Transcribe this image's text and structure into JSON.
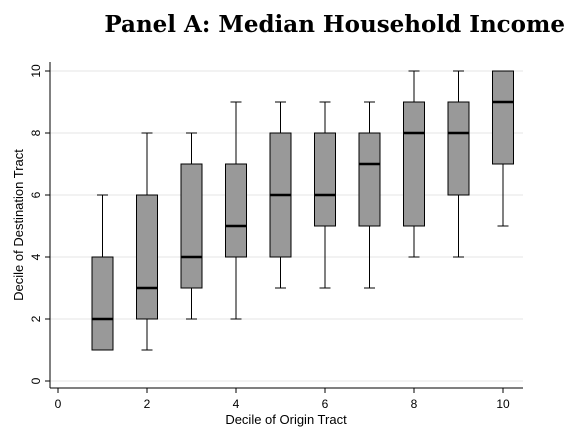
{
  "chart_data": {
    "type": "box",
    "title": "Panel A: Median Household Income",
    "xlabel": "Decile of Origin Tract",
    "ylabel": "Decile of Destination Tract",
    "xlim": [
      0,
      10.4
    ],
    "ylim": [
      0,
      10
    ],
    "xticks": [
      0,
      2,
      4,
      6,
      8,
      10
    ],
    "yticks": [
      0,
      2,
      4,
      6,
      8,
      10
    ],
    "grid": true,
    "box_color": "#999999",
    "boxes": [
      {
        "x": 1,
        "min": 1,
        "q1": 1,
        "median": 2,
        "q3": 4,
        "max": 6
      },
      {
        "x": 2,
        "min": 1,
        "q1": 2,
        "median": 3,
        "q3": 6,
        "max": 8
      },
      {
        "x": 3,
        "min": 2,
        "q1": 3,
        "median": 4,
        "q3": 7,
        "max": 8
      },
      {
        "x": 4,
        "min": 2,
        "q1": 4,
        "median": 5,
        "q3": 7,
        "max": 9
      },
      {
        "x": 5,
        "min": 3,
        "q1": 4,
        "median": 6,
        "q3": 8,
        "max": 9
      },
      {
        "x": 6,
        "min": 3,
        "q1": 5,
        "median": 6,
        "q3": 8,
        "max": 9
      },
      {
        "x": 7,
        "min": 3,
        "q1": 5,
        "median": 7,
        "q3": 8,
        "max": 9
      },
      {
        "x": 8,
        "min": 4,
        "q1": 5,
        "median": 8,
        "q3": 9,
        "max": 10
      },
      {
        "x": 9,
        "min": 4,
        "q1": 6,
        "median": 8,
        "q3": 9,
        "max": 10
      },
      {
        "x": 10,
        "min": 5,
        "q1": 7,
        "median": 9,
        "q3": 10,
        "max": 10
      }
    ]
  }
}
